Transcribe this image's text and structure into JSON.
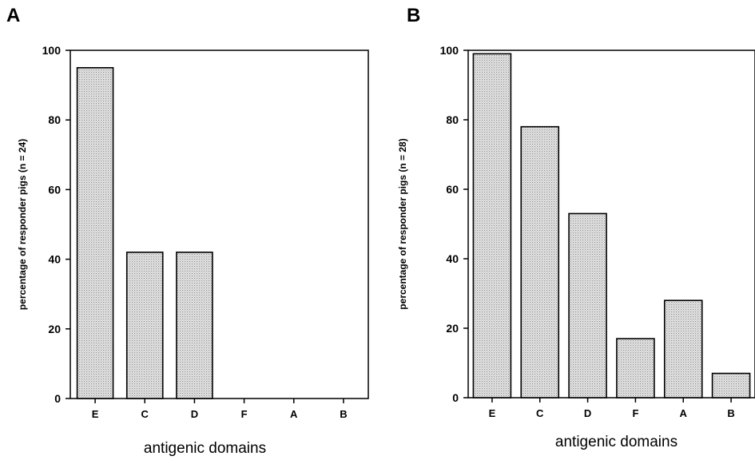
{
  "chart_data": [
    {
      "panel": "A",
      "type": "bar",
      "categories": [
        "E",
        "C",
        "D",
        "F",
        "A",
        "B"
      ],
      "values": [
        95,
        42,
        42,
        0,
        0,
        0
      ],
      "xlabel": "antigenic domains",
      "ylabel": "percentage of responder pigs (n = 24)",
      "ylim": [
        0,
        100
      ],
      "yticks": [
        0,
        20,
        40,
        60,
        80,
        100
      ],
      "grid": false,
      "bar_fill": "stippled grey"
    },
    {
      "panel": "B",
      "type": "bar",
      "categories": [
        "E",
        "C",
        "D",
        "F",
        "A",
        "B"
      ],
      "values": [
        99,
        78,
        53,
        17,
        28,
        7
      ],
      "xlabel": "antigenic domains",
      "ylabel": "percentage of responder pigs (n = 28)",
      "ylim": [
        0,
        100
      ],
      "yticks": [
        0,
        20,
        40,
        60,
        80,
        100
      ],
      "grid": false,
      "bar_fill": "stippled grey"
    }
  ],
  "colors": {
    "bar": "#d4d4d4",
    "axis": "#000000"
  }
}
